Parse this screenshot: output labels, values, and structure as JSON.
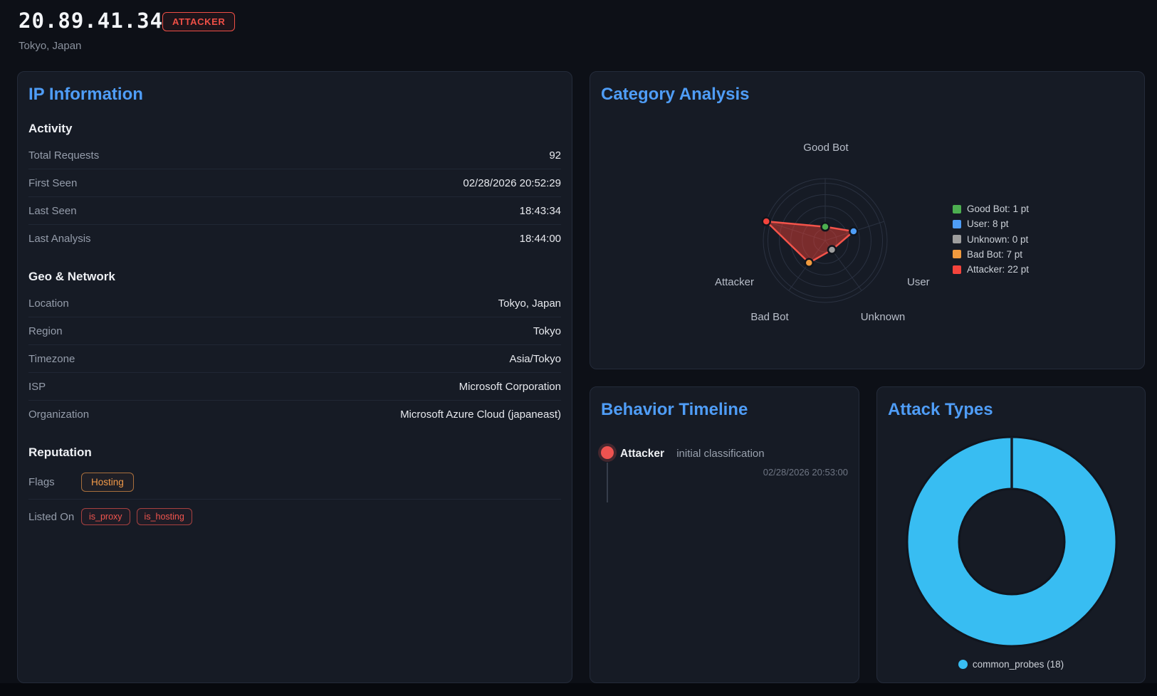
{
  "theme": {
    "page_bg": "#0d1017",
    "panel_bg": "#161b25",
    "accent_blue": "#4f9df7",
    "danger_red": "#ef5350",
    "warning_orange": "#f39a49",
    "donut_blue": "#38bdf2"
  },
  "header": {
    "ip": "20.89.41.34",
    "badge": "ATTACKER",
    "location": "Tokyo, Japan"
  },
  "ip_information": {
    "title": "IP Information",
    "sections": [
      {
        "heading": "Activity",
        "rows": [
          {
            "label": "Total Requests",
            "value": "92"
          },
          {
            "label": "First Seen",
            "value": "02/28/2026 20:52:29"
          },
          {
            "label": "Last Seen",
            "value": "18:43:34"
          },
          {
            "label": "Last Analysis",
            "value": "18:44:00"
          }
        ]
      },
      {
        "heading": "Geo & Network",
        "rows": [
          {
            "label": "Location",
            "value": "Tokyo, Japan"
          },
          {
            "label": "Region",
            "value": "Tokyo"
          },
          {
            "label": "Timezone",
            "value": "Asia/Tokyo"
          },
          {
            "label": "ISP",
            "value": "Microsoft Corporation"
          },
          {
            "label": "Organization",
            "value": "Microsoft Azure Cloud (japaneast)"
          }
        ]
      },
      {
        "heading": "Reputation",
        "rows": [
          {
            "label": "Flags",
            "badges": [
              {
                "text": "Hosting",
                "style": "orange"
              }
            ]
          },
          {
            "label": "Listed On",
            "badges": [
              {
                "text": "is_proxy",
                "style": "red"
              },
              {
                "text": "is_hosting",
                "style": "red"
              }
            ]
          }
        ]
      }
    ]
  },
  "category_analysis": {
    "title": "Category Analysis",
    "chart_data": {
      "type": "radar",
      "categories": [
        "Good Bot",
        "User",
        "Unknown",
        "Bad Bot",
        "Attacker"
      ],
      "values": [
        1,
        8,
        0,
        7,
        22
      ],
      "unit": "pt",
      "legend": [
        "Good Bot: 1 pt",
        "User: 8 pt",
        "Unknown: 0 pt",
        "Bad Bot: 7 pt",
        "Attacker: 22 pt"
      ],
      "point_colors": [
        "#4caf50",
        "#4e9df6",
        "#9e9e9e",
        "#f09a3e",
        "#f4443c"
      ],
      "line_color": "#f4534a",
      "fill_color": "rgba(244,67,54,0.45)",
      "scale": {
        "min": -5,
        "max": 22,
        "ticks": [
          0,
          5,
          10,
          15,
          20
        ]
      },
      "legend_position": "right",
      "grid": true
    }
  },
  "behavior_timeline": {
    "title": "Behavior Timeline",
    "events": [
      {
        "category": "Attacker",
        "description": "initial classification",
        "timestamp": "02/28/2026 20:53:00",
        "color": "#ef5350"
      }
    ]
  },
  "attack_types": {
    "title": "Attack Types",
    "chart_data": {
      "type": "doughnut",
      "segments": [
        {
          "label": "common_probes",
          "value": 18,
          "color": "#38bdf2"
        }
      ],
      "legend": [
        "common_probes (18)"
      ],
      "legend_position": "bottom"
    }
  }
}
